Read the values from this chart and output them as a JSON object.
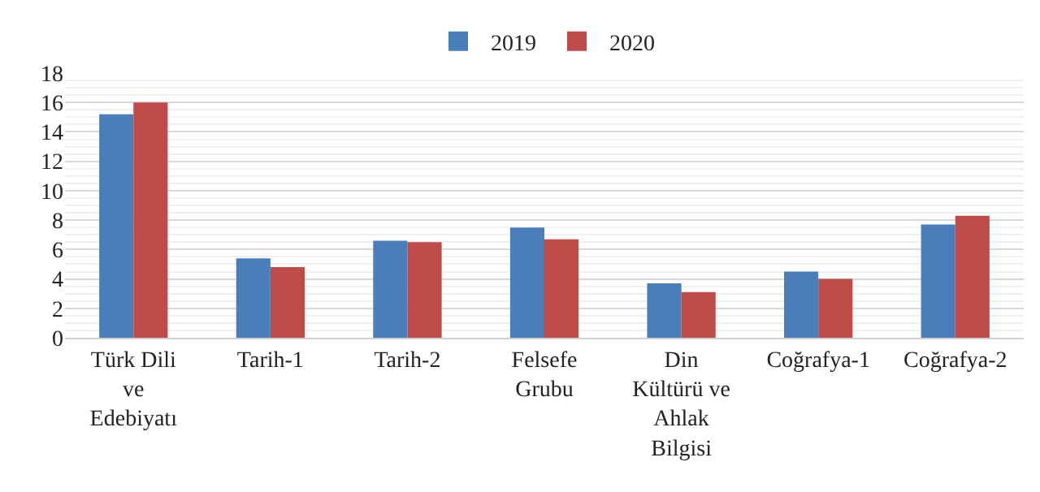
{
  "chart_data": {
    "type": "bar",
    "categories": [
      "Türk Dili\nve\nEdebiyatı",
      "Tarih-1",
      "Tarih-2",
      "Felsefe\nGrubu",
      "Din\nKültürü ve\nAhlak\nBilgisi",
      "Coğrafya-1",
      "Coğrafya-2"
    ],
    "series": [
      {
        "name": "2019",
        "color": "#4a7ebb",
        "values": [
          15.2,
          5.4,
          6.6,
          7.5,
          3.7,
          4.5,
          7.7
        ]
      },
      {
        "name": "2020",
        "color": "#be4b48",
        "values": [
          16.0,
          4.8,
          6.5,
          6.7,
          3.1,
          4.0,
          8.3
        ]
      }
    ],
    "ylim": [
      0,
      18
    ],
    "yticks": [
      0,
      2,
      4,
      6,
      8,
      10,
      12,
      14,
      16,
      18
    ],
    "grid": "y",
    "legend": "top"
  }
}
